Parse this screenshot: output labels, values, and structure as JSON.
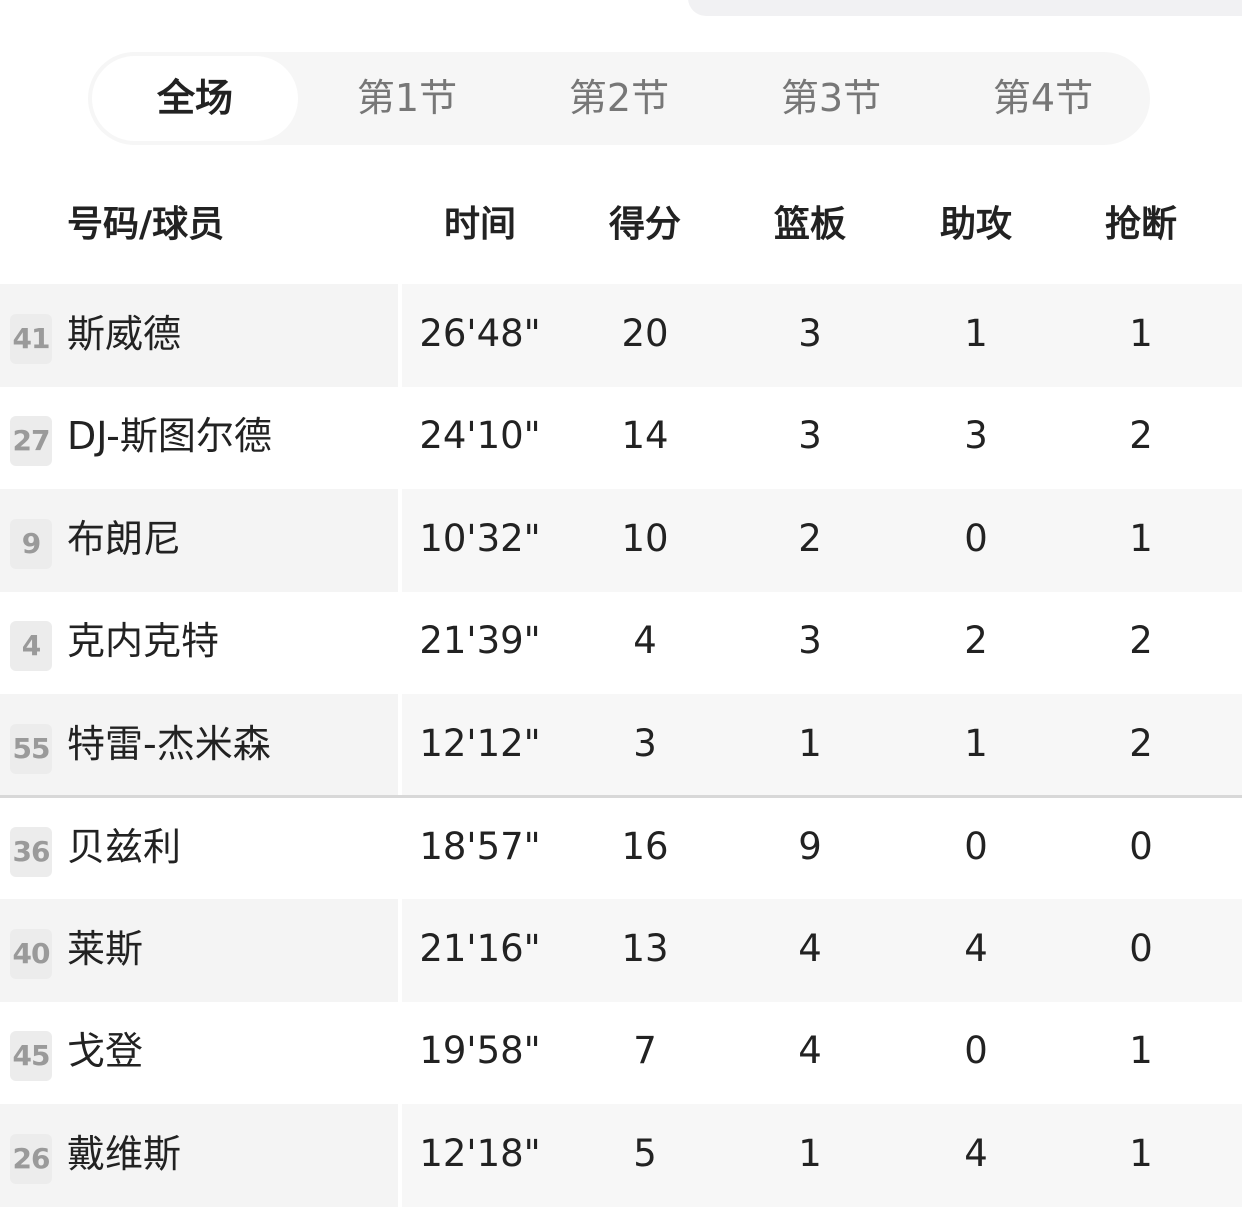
{
  "tabs": [
    {
      "label": "全场",
      "active": true
    },
    {
      "label": "第1节"
    },
    {
      "label": "第2节"
    },
    {
      "label": "第3节"
    },
    {
      "label": "第4节"
    }
  ],
  "headers": [
    "号码/球员",
    "时间",
    "得分",
    "篮板",
    "助攻",
    "抢断"
  ],
  "players": [
    {
      "number": "41",
      "name": "斯威德",
      "time": "26'48\"",
      "pts": "20",
      "reb": "3",
      "ast": "1",
      "stl": "1"
    },
    {
      "number": "27",
      "name": "DJ-斯图尔德",
      "time": "24'10\"",
      "pts": "14",
      "reb": "3",
      "ast": "3",
      "stl": "2"
    },
    {
      "number": "9",
      "name": "布朗尼",
      "time": "10'32\"",
      "pts": "10",
      "reb": "2",
      "ast": "0",
      "stl": "1"
    },
    {
      "number": "4",
      "name": "克内克特",
      "time": "21'39\"",
      "pts": "4",
      "reb": "3",
      "ast": "2",
      "stl": "2"
    },
    {
      "number": "55",
      "name": "特雷-杰米森",
      "time": "12'12\"",
      "pts": "3",
      "reb": "1",
      "ast": "1",
      "stl": "2"
    },
    {
      "number": "36",
      "name": "贝兹利",
      "time": "18'57\"",
      "pts": "16",
      "reb": "9",
      "ast": "0",
      "stl": "0"
    },
    {
      "number": "40",
      "name": "莱斯",
      "time": "21'16\"",
      "pts": "13",
      "reb": "4",
      "ast": "4",
      "stl": "0"
    },
    {
      "number": "45",
      "name": "戈登",
      "time": "19'58\"",
      "pts": "7",
      "reb": "4",
      "ast": "0",
      "stl": "1"
    },
    {
      "number": "26",
      "name": "戴维斯",
      "time": "12'18\"",
      "pts": "5",
      "reb": "1",
      "ast": "4",
      "stl": "1"
    }
  ]
}
